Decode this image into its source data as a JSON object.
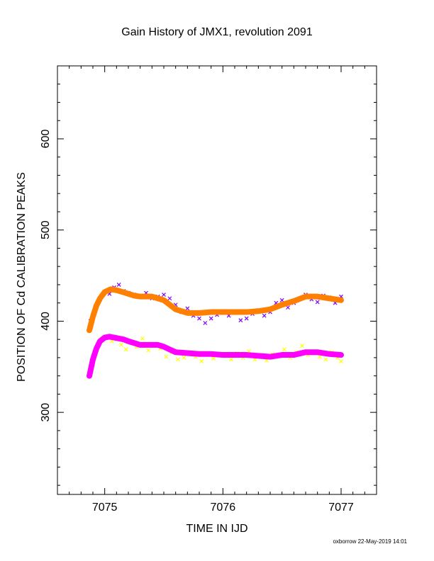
{
  "chart_data": {
    "type": "scatter",
    "title": "Gain History of JMX1, revolution 2091",
    "xlabel": "TIME IN IJD",
    "ylabel": "POSITION OF Cd CALIBRATION PEAKS",
    "xlim": [
      7074.6,
      7077.3
    ],
    "ylim": [
      210,
      680
    ],
    "xticks": [
      7075,
      7076,
      7077
    ],
    "yticks": [
      300,
      400,
      500,
      600
    ],
    "grid": false,
    "legend": "none",
    "series": [
      {
        "style": "scatter-x",
        "color": "#8000ff",
        "x": [
          7074.88,
          7074.92,
          7074.96,
          7075.0,
          7075.04,
          7075.08,
          7075.12,
          7075.16,
          7075.2,
          7075.25,
          7075.3,
          7075.35,
          7075.4,
          7075.45,
          7075.5,
          7075.55,
          7075.6,
          7075.65,
          7075.7,
          7075.75,
          7075.8,
          7075.85,
          7075.9,
          7075.95,
          7076.0,
          7076.05,
          7076.1,
          7076.15,
          7076.2,
          7076.25,
          7076.3,
          7076.35,
          7076.4,
          7076.45,
          7076.5,
          7076.55,
          7076.6,
          7076.65,
          7076.7,
          7076.75,
          7076.8,
          7076.85,
          7076.9,
          7076.95,
          7077.0
        ],
        "values": [
          400,
          415,
          424,
          432,
          430,
          437,
          440,
          433,
          431,
          429,
          428,
          431,
          425,
          427,
          429,
          425,
          418,
          410,
          414,
          406,
          403,
          398,
          403,
          407,
          411,
          406,
          409,
          401,
          403,
          408,
          412,
          406,
          410,
          420,
          423,
          415,
          420,
          425,
          429,
          424,
          421,
          428,
          426,
          420,
          427
        ]
      },
      {
        "style": "scatter-x",
        "color": "#ffff00",
        "x": [
          7074.9,
          7074.94,
          7074.98,
          7075.02,
          7075.06,
          7075.1,
          7075.14,
          7075.18,
          7075.22,
          7075.27,
          7075.32,
          7075.37,
          7075.42,
          7075.47,
          7075.52,
          7075.57,
          7075.62,
          7075.67,
          7075.72,
          7075.77,
          7075.82,
          7075.87,
          7075.92,
          7075.97,
          7076.02,
          7076.07,
          7076.12,
          7076.17,
          7076.22,
          7076.27,
          7076.32,
          7076.37,
          7076.42,
          7076.47,
          7076.52,
          7076.57,
          7076.62,
          7076.67,
          7076.72,
          7076.77,
          7076.82,
          7076.87,
          7076.92,
          7076.97,
          7077.0
        ],
        "values": [
          360,
          372,
          381,
          383,
          378,
          380,
          374,
          369,
          377,
          372,
          381,
          368,
          374,
          370,
          361,
          366,
          358,
          360,
          364,
          361,
          356,
          365,
          359,
          362,
          363,
          358,
          365,
          360,
          367,
          358,
          362,
          357,
          364,
          363,
          369,
          360,
          366,
          373,
          363,
          366,
          361,
          358,
          366,
          360,
          356
        ]
      },
      {
        "style": "thick-line",
        "color": "#ff8000",
        "x": [
          7074.87,
          7074.9,
          7074.93,
          7074.96,
          7075.0,
          7075.05,
          7075.1,
          7075.15,
          7075.2,
          7075.25,
          7075.3,
          7075.4,
          7075.45,
          7075.5,
          7075.55,
          7075.6,
          7075.7,
          7075.8,
          7075.9,
          7076.0,
          7076.1,
          7076.2,
          7076.3,
          7076.4,
          7076.5,
          7076.6,
          7076.7,
          7076.8,
          7076.9,
          7077.0
        ],
        "values": [
          390,
          405,
          417,
          425,
          432,
          435,
          434,
          432,
          430,
          428,
          427,
          427,
          425,
          423,
          418,
          413,
          409,
          409,
          410,
          410,
          410,
          410,
          411,
          413,
          418,
          422,
          427,
          427,
          425,
          423
        ]
      },
      {
        "style": "thick-line",
        "color": "#ff00ff",
        "x": [
          7074.87,
          7074.9,
          7074.93,
          7074.96,
          7075.0,
          7075.04,
          7075.08,
          7075.12,
          7075.16,
          7075.2,
          7075.25,
          7075.3,
          7075.4,
          7075.45,
          7075.5,
          7075.55,
          7075.6,
          7075.7,
          7075.8,
          7075.9,
          7076.0,
          7076.1,
          7076.2,
          7076.3,
          7076.4,
          7076.5,
          7076.6,
          7076.7,
          7076.8,
          7076.9,
          7077.0
        ],
        "values": [
          340,
          358,
          370,
          378,
          382,
          383,
          382,
          381,
          380,
          378,
          376,
          374,
          374,
          374,
          372,
          369,
          366,
          365,
          364,
          364,
          363,
          363,
          363,
          362,
          361,
          363,
          363,
          366,
          366,
          364,
          363
        ]
      }
    ]
  },
  "footer": "oxborrow 22-May-2019 14:01"
}
